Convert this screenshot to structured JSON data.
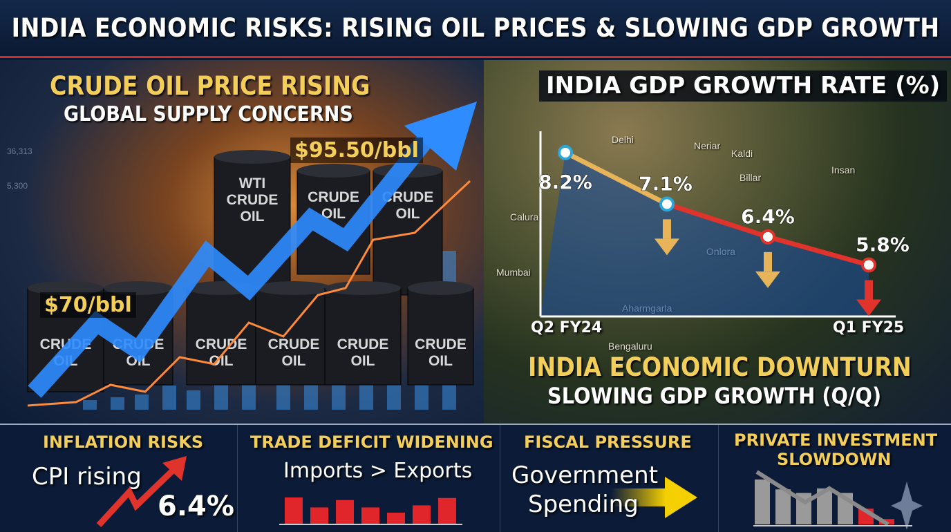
{
  "title": "INDIA ECONOMIC RISKS: RISING OIL PRICES & SLOWING GDP GROWTH",
  "oil": {
    "heading": "CRUDE OIL PRICE RISING",
    "subheading": "GLOBAL SUPPLY CONCERNS",
    "price_high": "$95.50/bbl",
    "price_low": "$70/bbl",
    "barrel_labels": [
      "CRUDE OIL",
      "WTI CRUDE OIL",
      "CRUDE OIL",
      "CRUDE OIL",
      "CRUDE OIL",
      "CRUDE OIL",
      "CRUDE OIL",
      "CRUDE OIL",
      "CRUDE OIL"
    ],
    "background_numbers": [
      "36,313",
      "5,300"
    ]
  },
  "gdp": {
    "heading": "INDIA GDP GROWTH RATE (%)",
    "footer_title": "INDIA ECONOMIC DOWNTURN",
    "footer_subtitle": "SLOWING GDP GROWTH (Q/Q)",
    "map_labels": [
      "Delhi",
      "Neriar",
      "Kaldi",
      "Insan",
      "Billar",
      "Calura",
      "Mumbai",
      "Onlora",
      "Aharmgarla",
      "Bengaluru"
    ]
  },
  "chart_data": {
    "type": "line",
    "x_start_label": "Q2 FY24",
    "x_end_label": "Q1 FY25",
    "values": [
      8.2,
      7.1,
      6.4,
      5.8
    ],
    "data_labels": [
      "8.2%",
      "7.1%",
      "6.4%",
      "5.8%"
    ],
    "ylim": [
      4.7,
      8.7
    ],
    "grid": false,
    "colors": {
      "first_segment": "#e8b45a",
      "later_segments": "#e0332b"
    }
  },
  "bottom": [
    {
      "title": "INFLATION RISKS",
      "text": "CPI rising",
      "value": "6.4%"
    },
    {
      "title": "TRADE DEFICIT WIDENING",
      "text": "Imports > Exports",
      "bars": [
        1.0,
        0.62,
        0.9,
        0.62,
        0.42,
        0.7,
        0.98
      ]
    },
    {
      "title": "FISCAL PRESSURE",
      "text_line1": "Government",
      "text_line2": "Spending"
    },
    {
      "title": "PRIVATE INVESTMENT",
      "title2": "SLOWDOWN",
      "bars": [
        1.0,
        0.78,
        0.7,
        0.8,
        0.7,
        0.35,
        0.12
      ]
    }
  ],
  "colors": {
    "accent_yellow": "#f3cf5a",
    "red": "#e0332b",
    "navy": "#0c1c38",
    "arrow_blue": "#3aa0ff"
  }
}
